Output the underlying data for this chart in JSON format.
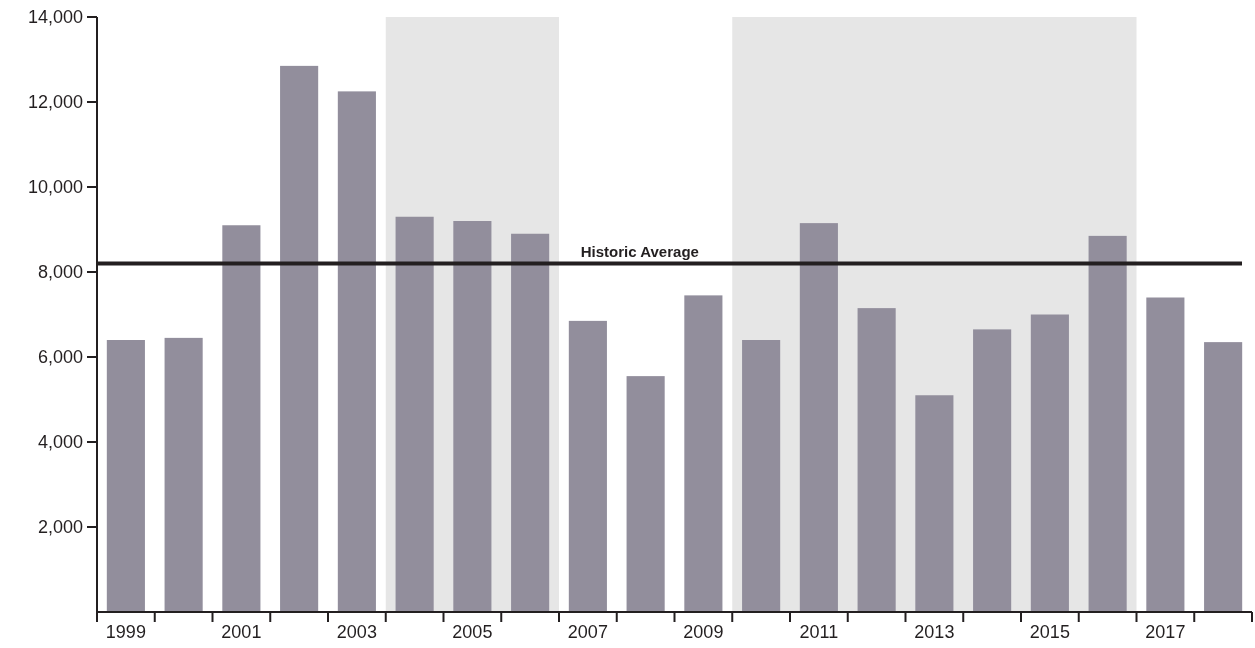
{
  "chart_data": {
    "type": "bar",
    "x": [
      1999,
      2000,
      2001,
      2002,
      2003,
      2004,
      2005,
      2006,
      2007,
      2008,
      2009,
      2010,
      2011,
      2012,
      2013,
      2014,
      2015,
      2016,
      2017,
      2018
    ],
    "values": [
      6400,
      6450,
      9100,
      12850,
      12250,
      9300,
      9200,
      8900,
      6850,
      5550,
      7450,
      6400,
      9150,
      7150,
      5100,
      6650,
      7000,
      8850,
      7400,
      6350
    ],
    "color": "#928e9c",
    "xlim": [
      1998.5,
      2018.5
    ],
    "xticks": [
      {
        "value": 1998.5,
        "label": null
      },
      1999,
      {
        "value": 1999.5,
        "label": null
      },
      {
        "value": 2000.5,
        "label": null
      },
      2001,
      {
        "value": 2001.5,
        "label": null
      },
      {
        "value": 2002.5,
        "label": null
      },
      2003,
      {
        "value": 2003.5,
        "label": null
      },
      {
        "value": 2004.5,
        "label": null
      },
      2005,
      {
        "value": 2005.5,
        "label": null
      },
      {
        "value": 2006.5,
        "label": null
      },
      2007,
      {
        "value": 2007.5,
        "label": null
      },
      {
        "value": 2008.5,
        "label": null
      },
      2009,
      {
        "value": 2009.5,
        "label": null
      },
      {
        "value": 2010.5,
        "label": null
      },
      2011,
      {
        "value": 2011.5,
        "label": null
      },
      {
        "value": 2012.5,
        "label": null
      },
      2013,
      {
        "value": 2013.5,
        "label": null
      },
      {
        "value": 2014.5,
        "label": null
      },
      2015,
      {
        "value": 2015.5,
        "label": null
      },
      {
        "value": 2016.5,
        "label": null
      },
      2017,
      {
        "value": 2017.5,
        "label": null
      },
      {
        "value": 2018.5,
        "label": null
      }
    ],
    "ylim": [
      0,
      14000
    ],
    "yticks": [
      {
        "value": 2000,
        "label": "2,000"
      },
      {
        "value": 4000,
        "label": "4,000"
      },
      {
        "value": 6000,
        "label": "6,000"
      },
      {
        "value": 8000,
        "label": "8,000"
      },
      {
        "value": 10000,
        "label": "10,000"
      },
      {
        "value": 12000,
        "label": "12,000"
      },
      {
        "value": 14000,
        "label": "14,000"
      }
    ],
    "bands": [
      {
        "axis": "x",
        "from": 2003.5,
        "to": 2006.5,
        "color": "#e6e6e6"
      },
      {
        "axis": "x",
        "from": 2009.5,
        "to": 2016.5,
        "color": "#e6e6e6"
      }
    ],
    "ref_lines": [
      {
        "axis": "y",
        "value": 8200,
        "label": "Historic Average",
        "color": "#231f20"
      }
    ]
  }
}
